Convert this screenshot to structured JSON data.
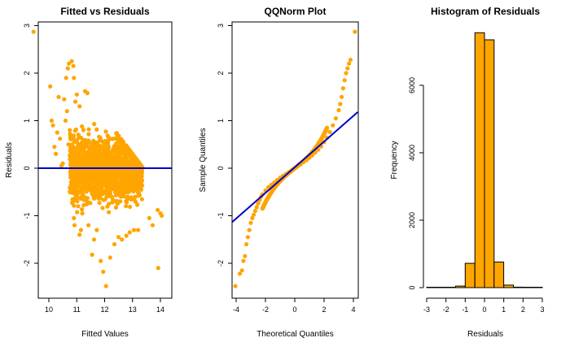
{
  "chart_data": [
    {
      "type": "scatter",
      "title": "Fitted vs Residuals",
      "xlabel": "Fitted Values",
      "ylabel": "Residuals",
      "xlim": [
        9.25,
        14.25
      ],
      "ylim": [
        -2.6,
        3.05
      ],
      "xticks": [
        "10",
        "11",
        "12",
        "13",
        "14"
      ],
      "yticks": [
        "-2",
        "-1",
        "0",
        "1",
        "2",
        "3"
      ],
      "point_color": "#FFA500",
      "reference_line": {
        "type": "horizontal",
        "y": 0,
        "color": "#0000CD"
      },
      "points": [
        [
          9.45,
          2.87
        ],
        [
          10.05,
          1.72
        ],
        [
          10.1,
          1.0
        ],
        [
          10.15,
          0.9
        ],
        [
          10.2,
          0.45
        ],
        [
          10.25,
          0.3
        ],
        [
          10.3,
          0.75
        ],
        [
          10.35,
          1.5
        ],
        [
          10.4,
          0.62
        ],
        [
          10.45,
          0.05
        ],
        [
          10.5,
          0.1
        ],
        [
          10.55,
          1.45
        ],
        [
          10.6,
          1.0
        ],
        [
          10.65,
          1.2
        ],
        [
          10.7,
          0.5
        ],
        [
          10.75,
          0.8
        ],
        [
          10.62,
          1.9
        ],
        [
          10.68,
          2.1
        ],
        [
          10.72,
          2.2
        ],
        [
          10.82,
          2.25
        ],
        [
          10.88,
          2.15
        ],
        [
          10.9,
          1.9
        ],
        [
          10.95,
          1.4
        ],
        [
          11.0,
          1.55
        ],
        [
          11.1,
          1.3
        ],
        [
          11.3,
          1.62
        ],
        [
          11.38,
          1.58
        ],
        [
          10.92,
          -1.2
        ],
        [
          10.9,
          -1.05
        ],
        [
          10.95,
          -0.62
        ],
        [
          11.05,
          -0.8
        ],
        [
          11.1,
          -1.4
        ],
        [
          11.15,
          -1.3
        ],
        [
          11.2,
          -0.95
        ],
        [
          11.42,
          -1.2
        ],
        [
          11.55,
          -1.82
        ],
        [
          11.62,
          -1.5
        ],
        [
          11.72,
          -1.3
        ],
        [
          11.86,
          -1.95
        ],
        [
          11.95,
          -2.18
        ],
        [
          12.05,
          -2.48
        ],
        [
          12.2,
          -1.88
        ],
        [
          12.35,
          -1.6
        ],
        [
          12.5,
          -1.45
        ],
        [
          12.62,
          -1.5
        ],
        [
          12.78,
          -1.42
        ],
        [
          12.9,
          -1.35
        ],
        [
          13.05,
          -1.3
        ],
        [
          13.2,
          -1.3
        ],
        [
          13.6,
          -1.05
        ],
        [
          13.72,
          -1.2
        ],
        [
          13.9,
          -0.88
        ],
        [
          13.92,
          -2.1
        ],
        [
          14.0,
          -0.95
        ],
        [
          14.05,
          -1.0
        ]
      ]
    },
    {
      "type": "scatter",
      "title": "QQNorm Plot",
      "xlabel": "Theoretical Quantiles",
      "ylabel": "Sample Quantiles",
      "xlim": [
        -4.3,
        4.3
      ],
      "ylim": [
        -2.6,
        3.05
      ],
      "xticks": [
        "-4",
        "-2",
        "0",
        "2",
        "4"
      ],
      "yticks": [
        "-2",
        "-1",
        "0",
        "1",
        "2",
        "3"
      ],
      "point_color": "#FFA500",
      "reference_line": {
        "type": "abline",
        "intercept": 0.02,
        "slope": 0.27,
        "color": "#0000CD"
      },
      "points": [
        [
          -4.05,
          -2.48
        ],
        [
          -3.75,
          -2.22
        ],
        [
          -3.6,
          -2.15
        ],
        [
          -3.5,
          -1.95
        ],
        [
          -3.4,
          -1.85
        ],
        [
          -3.3,
          -1.6
        ],
        [
          -3.2,
          -1.45
        ],
        [
          -3.1,
          -1.3
        ],
        [
          -3.0,
          -1.15
        ],
        [
          -2.9,
          -1.05
        ],
        [
          -2.8,
          -0.98
        ],
        [
          -2.7,
          -0.9
        ],
        [
          -2.6,
          -0.82
        ],
        [
          -2.5,
          -0.74
        ],
        [
          -2.4,
          -0.67
        ],
        [
          -2.3,
          -0.6
        ],
        [
          -2.2,
          -0.55
        ],
        [
          -2.0,
          -0.47
        ],
        [
          -1.8,
          -0.4
        ],
        [
          -1.6,
          -0.35
        ],
        [
          -1.4,
          -0.3
        ],
        [
          -1.2,
          -0.25
        ],
        [
          -1.0,
          -0.2
        ],
        [
          -0.8,
          -0.16
        ],
        [
          -0.6,
          -0.12
        ],
        [
          -0.4,
          -0.08
        ],
        [
          -0.2,
          -0.04
        ],
        [
          0.0,
          0.0
        ],
        [
          0.2,
          0.04
        ],
        [
          0.4,
          0.08
        ],
        [
          0.6,
          0.13
        ],
        [
          0.8,
          0.17
        ],
        [
          1.0,
          0.22
        ],
        [
          1.2,
          0.27
        ],
        [
          1.4,
          0.33
        ],
        [
          1.6,
          0.39
        ],
        [
          1.8,
          0.46
        ],
        [
          2.0,
          0.55
        ],
        [
          2.2,
          0.64
        ],
        [
          2.4,
          0.76
        ],
        [
          2.6,
          0.9
        ],
        [
          2.8,
          1.05
        ],
        [
          3.0,
          1.22
        ],
        [
          3.1,
          1.35
        ],
        [
          3.2,
          1.5
        ],
        [
          3.3,
          1.68
        ],
        [
          3.4,
          1.85
        ],
        [
          3.5,
          2.0
        ],
        [
          3.6,
          2.1
        ],
        [
          3.7,
          2.2
        ],
        [
          3.8,
          2.28
        ],
        [
          4.1,
          2.87
        ]
      ]
    },
    {
      "type": "bar",
      "title": "Histogram of Residuals",
      "xlabel": "Residuals",
      "ylabel": "Frequency",
      "xlim": [
        -3,
        3
      ],
      "ylim": [
        0,
        8200
      ],
      "xticks": [
        "-3",
        "-2",
        "-1",
        "0",
        "1",
        "2",
        "3"
      ],
      "yticks": [
        "0",
        "2000",
        "4000",
        "6000"
      ],
      "bar_color": "#FFA500",
      "bins": [
        {
          "x0": -3.0,
          "x1": -2.5,
          "count": 2
        },
        {
          "x0": -2.5,
          "x1": -2.0,
          "count": 4
        },
        {
          "x0": -2.0,
          "x1": -1.5,
          "count": 10
        },
        {
          "x0": -1.5,
          "x1": -1.0,
          "count": 45
        },
        {
          "x0": -1.0,
          "x1": -0.5,
          "count": 720
        },
        {
          "x0": -0.5,
          "x1": 0.0,
          "count": 7560
        },
        {
          "x0": 0.0,
          "x1": 0.5,
          "count": 7350
        },
        {
          "x0": 0.5,
          "x1": 1.0,
          "count": 760
        },
        {
          "x0": 1.0,
          "x1": 1.5,
          "count": 75
        },
        {
          "x0": 1.5,
          "x1": 2.0,
          "count": 15
        },
        {
          "x0": 2.0,
          "x1": 2.5,
          "count": 3
        },
        {
          "x0": 2.5,
          "x1": 3.0,
          "count": 1
        }
      ]
    }
  ]
}
